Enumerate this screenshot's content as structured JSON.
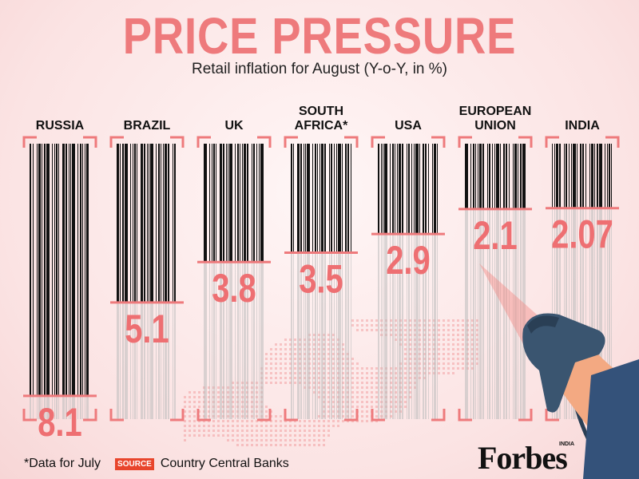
{
  "chart_data": {
    "type": "bar",
    "title": "PRICE PRESSURE",
    "subtitle": "Retail inflation for August (Y-o-Y, in %)",
    "categories": [
      [
        "RUSSIA"
      ],
      [
        "BRAZIL"
      ],
      [
        "UK"
      ],
      [
        "SOUTH",
        "AFRICA*"
      ],
      [
        "USA"
      ],
      [
        "EUROPEAN",
        "UNION"
      ],
      [
        "INDIA"
      ]
    ],
    "values": [
      8.1,
      5.1,
      3.8,
      3.5,
      2.9,
      2.1,
      2.07
    ],
    "value_labels": [
      "8.1",
      "5.1",
      "3.8",
      "3.5",
      "2.9",
      "2.1",
      "2.07"
    ],
    "ylim": [
      0,
      8.5
    ]
  },
  "footer": {
    "note": "*Data for July",
    "source_badge": "SOURCE",
    "source": "Country Central Banks"
  },
  "brand": {
    "logo": "Forbes",
    "logo_sub": "INDIA"
  },
  "colors": {
    "accent": "#ee7a7c",
    "bar": "#111111",
    "source": "#e8452c"
  }
}
